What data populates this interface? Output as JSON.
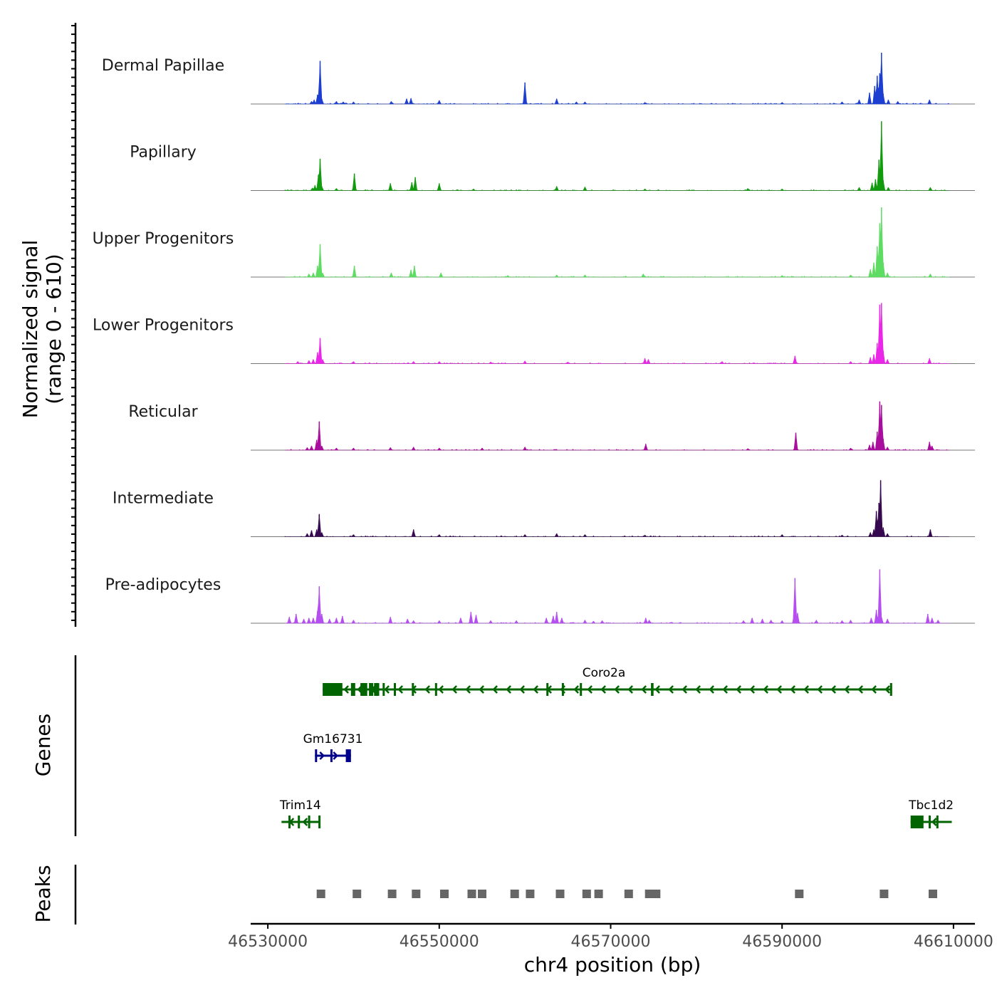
{
  "chart_data": {
    "type": "coverage-track",
    "chromosome": "chr4",
    "region": {
      "start": 46528000,
      "end": 46612500
    },
    "y_axis_title": "Normalized signal",
    "y_axis_subtitle": "(range 0 - 610)",
    "signal_range": [
      0,
      610
    ],
    "x_axis_title": "chr4 position (bp)",
    "x_ticks": [
      {
        "value": 46530000,
        "label": "46530000"
      },
      {
        "value": 46550000,
        "label": "46550000"
      },
      {
        "value": 46570000,
        "label": "46570000"
      },
      {
        "value": 46590000,
        "label": "46590000"
      },
      {
        "value": 46610000,
        "label": "46610000"
      }
    ],
    "tracks": [
      {
        "name": "Dermal Papillae",
        "color": "#1c3fd1",
        "peaks": [
          [
            46535100,
            5
          ],
          [
            46535400,
            8
          ],
          [
            46535800,
            18
          ],
          [
            46536000,
            30
          ],
          [
            46536100,
            84
          ],
          [
            46536300,
            10
          ],
          [
            46538000,
            5
          ],
          [
            46538800,
            4
          ],
          [
            46540000,
            4
          ],
          [
            46544400,
            5
          ],
          [
            46546200,
            10
          ],
          [
            46546700,
            11
          ],
          [
            46550000,
            7
          ],
          [
            46560000,
            42
          ],
          [
            46563700,
            10
          ],
          [
            46566000,
            4
          ],
          [
            46567000,
            4
          ],
          [
            46574000,
            3
          ],
          [
            46590000,
            3
          ],
          [
            46597000,
            4
          ],
          [
            46599000,
            8
          ],
          [
            46600200,
            22
          ],
          [
            46600800,
            35
          ],
          [
            46601100,
            55
          ],
          [
            46601400,
            60
          ],
          [
            46601600,
            100
          ],
          [
            46601800,
            20
          ],
          [
            46602400,
            8
          ],
          [
            46603500,
            5
          ],
          [
            46607200,
            8
          ]
        ]
      },
      {
        "name": "Papillary",
        "color": "#139b0f",
        "peaks": [
          [
            46535200,
            5
          ],
          [
            46535500,
            10
          ],
          [
            46535900,
            30
          ],
          [
            46536100,
            62
          ],
          [
            46536300,
            8
          ],
          [
            46538000,
            4
          ],
          [
            46540100,
            33
          ],
          [
            46544300,
            14
          ],
          [
            46546800,
            16
          ],
          [
            46547200,
            26
          ],
          [
            46550000,
            14
          ],
          [
            46554000,
            3
          ],
          [
            46563700,
            8
          ],
          [
            46567000,
            7
          ],
          [
            46574000,
            3
          ],
          [
            46586000,
            4
          ],
          [
            46590000,
            3
          ],
          [
            46599000,
            6
          ],
          [
            46600500,
            15
          ],
          [
            46600900,
            22
          ],
          [
            46601300,
            60
          ],
          [
            46601600,
            135
          ],
          [
            46601800,
            20
          ],
          [
            46602400,
            6
          ],
          [
            46607300,
            6
          ]
        ]
      },
      {
        "name": "Upper Progenitors",
        "color": "#5edc63",
        "peaks": [
          [
            46534800,
            6
          ],
          [
            46535300,
            8
          ],
          [
            46535800,
            22
          ],
          [
            46536100,
            64
          ],
          [
            46536400,
            8
          ],
          [
            46540100,
            22
          ],
          [
            46544400,
            8
          ],
          [
            46546700,
            14
          ],
          [
            46547100,
            22
          ],
          [
            46550200,
            8
          ],
          [
            46558000,
            3
          ],
          [
            46563700,
            4
          ],
          [
            46567000,
            4
          ],
          [
            46573800,
            6
          ],
          [
            46590000,
            3
          ],
          [
            46598000,
            4
          ],
          [
            46600300,
            15
          ],
          [
            46600700,
            28
          ],
          [
            46601100,
            60
          ],
          [
            46601400,
            105
          ],
          [
            46601600,
            136
          ],
          [
            46601800,
            28
          ],
          [
            46602300,
            8
          ],
          [
            46607300,
            6
          ]
        ]
      },
      {
        "name": "Lower Progenitors",
        "color": "#ea27e8",
        "peaks": [
          [
            46533500,
            4
          ],
          [
            46534800,
            6
          ],
          [
            46535300,
            8
          ],
          [
            46535800,
            22
          ],
          [
            46536100,
            50
          ],
          [
            46536400,
            8
          ],
          [
            46540000,
            4
          ],
          [
            46547000,
            4
          ],
          [
            46550000,
            4
          ],
          [
            46556000,
            3
          ],
          [
            46560000,
            5
          ],
          [
            46565000,
            3
          ],
          [
            46574000,
            10
          ],
          [
            46574400,
            8
          ],
          [
            46583000,
            4
          ],
          [
            46591500,
            15
          ],
          [
            46598000,
            4
          ],
          [
            46600300,
            12
          ],
          [
            46600700,
            18
          ],
          [
            46601100,
            40
          ],
          [
            46601400,
            115
          ],
          [
            46601600,
            118
          ],
          [
            46601800,
            25
          ],
          [
            46602300,
            8
          ],
          [
            46607200,
            10
          ]
        ]
      },
      {
        "name": "Reticular",
        "color": "#a90e9d",
        "peaks": [
          [
            46534600,
            5
          ],
          [
            46535100,
            8
          ],
          [
            46535700,
            20
          ],
          [
            46536000,
            56
          ],
          [
            46536300,
            8
          ],
          [
            46538000,
            4
          ],
          [
            46540000,
            4
          ],
          [
            46544300,
            5
          ],
          [
            46547000,
            6
          ],
          [
            46550000,
            4
          ],
          [
            46555000,
            4
          ],
          [
            46560000,
            6
          ],
          [
            46574100,
            12
          ],
          [
            46586000,
            3
          ],
          [
            46591600,
            34
          ],
          [
            46598000,
            4
          ],
          [
            46600200,
            10
          ],
          [
            46600600,
            16
          ],
          [
            46601100,
            36
          ],
          [
            46601400,
            95
          ],
          [
            46601600,
            88
          ],
          [
            46601800,
            22
          ],
          [
            46602300,
            6
          ],
          [
            46607200,
            16
          ],
          [
            46607500,
            8
          ]
        ]
      },
      {
        "name": "Intermediate",
        "color": "#36084f",
        "peaks": [
          [
            46534600,
            6
          ],
          [
            46535100,
            12
          ],
          [
            46535700,
            14
          ],
          [
            46536000,
            44
          ],
          [
            46536300,
            8
          ],
          [
            46540000,
            4
          ],
          [
            46547000,
            14
          ],
          [
            46550000,
            4
          ],
          [
            46560000,
            4
          ],
          [
            46563700,
            6
          ],
          [
            46567000,
            4
          ],
          [
            46574000,
            3
          ],
          [
            46590000,
            4
          ],
          [
            46597000,
            3
          ],
          [
            46600300,
            8
          ],
          [
            46600700,
            14
          ],
          [
            46601000,
            50
          ],
          [
            46601300,
            66
          ],
          [
            46601500,
            110
          ],
          [
            46601800,
            18
          ],
          [
            46602300,
            6
          ],
          [
            46607300,
            14
          ]
        ]
      },
      {
        "name": "Pre-adipocytes",
        "color": "#b54ff0",
        "peaks": [
          [
            46532500,
            12
          ],
          [
            46533300,
            18
          ],
          [
            46534200,
            8
          ],
          [
            46534800,
            10
          ],
          [
            46535300,
            10
          ],
          [
            46535800,
            24
          ],
          [
            46536000,
            72
          ],
          [
            46536300,
            18
          ],
          [
            46537200,
            8
          ],
          [
            46538000,
            10
          ],
          [
            46538700,
            14
          ],
          [
            46540000,
            6
          ],
          [
            46544300,
            12
          ],
          [
            46546300,
            8
          ],
          [
            46547000,
            5
          ],
          [
            46550000,
            5
          ],
          [
            46552500,
            10
          ],
          [
            46553700,
            22
          ],
          [
            46554300,
            16
          ],
          [
            46556000,
            5
          ],
          [
            46559000,
            5
          ],
          [
            46562500,
            10
          ],
          [
            46563300,
            14
          ],
          [
            46563700,
            22
          ],
          [
            46564300,
            10
          ],
          [
            46567000,
            6
          ],
          [
            46568000,
            4
          ],
          [
            46569000,
            5
          ],
          [
            46574100,
            10
          ],
          [
            46574500,
            6
          ],
          [
            46585500,
            5
          ],
          [
            46586500,
            10
          ],
          [
            46587700,
            8
          ],
          [
            46588700,
            6
          ],
          [
            46590000,
            5
          ],
          [
            46591500,
            88
          ],
          [
            46591800,
            20
          ],
          [
            46594000,
            6
          ],
          [
            46597000,
            5
          ],
          [
            46598000,
            6
          ],
          [
            46600400,
            10
          ],
          [
            46601000,
            26
          ],
          [
            46601400,
            105
          ],
          [
            46601600,
            12
          ],
          [
            46602300,
            8
          ],
          [
            46607000,
            18
          ],
          [
            46607500,
            10
          ],
          [
            46608200,
            6
          ]
        ]
      }
    ],
    "genes_track_label": "Genes",
    "genes": [
      {
        "name": "Coro2a",
        "strand": "-",
        "start": 46536400,
        "end": 46602800,
        "row": 0,
        "color": "#006400",
        "exons": [
          [
            46536400,
            46538700
          ],
          [
            46539700,
            46540200
          ],
          [
            46540800,
            46541600
          ],
          [
            46541800,
            46542300
          ],
          [
            46542400,
            46543000
          ],
          [
            46543400,
            46543500
          ],
          [
            46544700,
            46544800
          ],
          [
            46546800,
            46546900
          ],
          [
            46549500,
            46549600
          ],
          [
            46562500,
            46562600
          ],
          [
            46564300,
            46564400
          ],
          [
            46566400,
            46566500
          ],
          [
            46574700,
            46575000
          ],
          [
            46602600,
            46602800
          ]
        ]
      },
      {
        "name": "Gm16731",
        "strand": "+",
        "start": 46535500,
        "end": 46539700,
        "row": 1,
        "color": "#00008b",
        "exons": [
          [
            46535500,
            46535700
          ],
          [
            46537300,
            46537400
          ],
          [
            46539100,
            46539700
          ]
        ]
      },
      {
        "name": "Trim14",
        "strand": "-",
        "start": 46531600,
        "end": 46536000,
        "row": 2,
        "color": "#006400",
        "exons": [
          [
            46532400,
            46532500
          ],
          [
            46533500,
            46533600
          ],
          [
            46534700,
            46534800
          ],
          [
            46535900,
            46536000
          ]
        ]
      },
      {
        "name": "Tbc1d2",
        "strand": "-",
        "start": 46605000,
        "end": 46609800,
        "row": 2,
        "color": "#006400",
        "exons": [
          [
            46605000,
            46606500
          ],
          [
            46607100,
            46607200
          ],
          [
            46608000,
            46608100
          ]
        ]
      }
    ],
    "peaks_track_label": "Peaks",
    "peak_regions": [
      46536200,
      46540400,
      46544500,
      46547300,
      46550600,
      46553800,
      46555000,
      46558800,
      46560600,
      46564100,
      46567200,
      46568600,
      46572100,
      46574500,
      46575300,
      46592000,
      46601900,
      46607600
    ],
    "peak_color": "#666666"
  }
}
